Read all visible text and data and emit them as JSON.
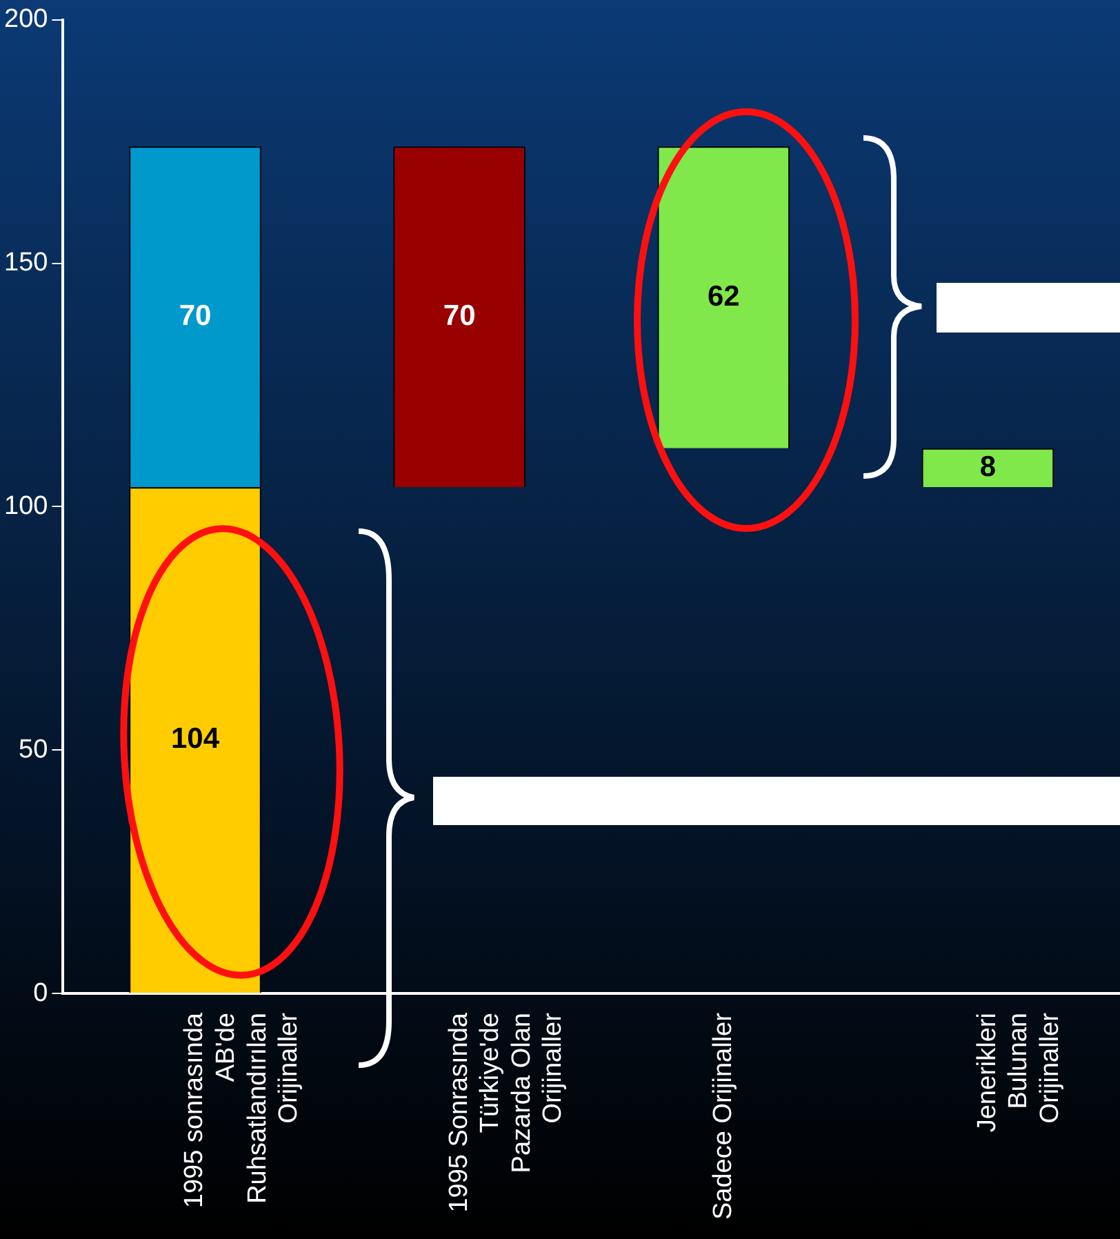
{
  "chart_data": {
    "type": "bar",
    "categories": [
      "1995 sonrasında AB'de Ruhsatlandırılan Orijinaller",
      "1995 Sonrasında Türkiye'de Pazarda Olan Orijinaller",
      "Sadece Orijinaller",
      "Jenerikleri Bulunan Orijinaller"
    ],
    "series": [
      {
        "color": "#ffcc00",
        "values": [
          104,
          null,
          null,
          null
        ],
        "base": [
          0,
          null,
          null,
          null
        ]
      },
      {
        "colors": [
          "#0099cc",
          "#990000",
          "#80e84a",
          "#80e84a"
        ],
        "values": [
          70,
          70,
          62,
          8
        ],
        "base": [
          104,
          104,
          112,
          104
        ]
      }
    ],
    "ylim": [
      0,
      200
    ],
    "yticks": [
      0,
      50,
      100,
      150,
      200
    ],
    "grid": false,
    "legend": false,
    "data_labels": true
  }
}
